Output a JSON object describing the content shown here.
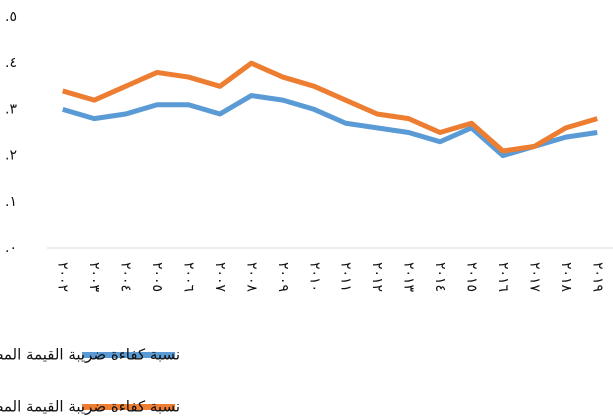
{
  "chart_data": {
    "type": "line",
    "categories": [
      "٢٠٠٢",
      "٢٠٠٣",
      "٢٠٠٤",
      "٢٠٠٥",
      "٢٠٠٦",
      "٢٠٠٧",
      "٢٠٠٨",
      "٢٠٠٩",
      "٢٠١٠",
      "٢٠١١",
      "٢٠١٢",
      "٢٠١٣",
      "٢٠١٤",
      "٢٠١٥",
      "٢٠١٦",
      "٢٠١٧",
      "٢٠١٨",
      "٢٠١٩"
    ],
    "series": [
      {
        "name": "نسبة كفاءة ضريبة القيمة المضافة",
        "color": "#5b9bd5",
        "values": [
          0.3,
          0.28,
          0.29,
          0.31,
          0.31,
          0.29,
          0.33,
          0.32,
          0.3,
          0.27,
          0.26,
          0.25,
          0.23,
          0.26,
          0.2,
          0.22,
          0.24,
          0.25
        ]
      },
      {
        "name": "نسبة كفاءة ضريبة القيمة المضافة على قاعدة الاستهلاك",
        "color": "#ed7d31",
        "values": [
          0.34,
          0.32,
          0.35,
          0.38,
          0.37,
          0.35,
          0.4,
          0.37,
          0.35,
          0.32,
          0.29,
          0.28,
          0.25,
          0.27,
          0.21,
          0.22,
          0.26,
          0.28
        ]
      }
    ],
    "ylim": [
      0,
      0.5
    ],
    "yticks": [
      {
        "value": 0,
        "label": ".٠"
      },
      {
        "value": 0.1,
        "label": ".١"
      },
      {
        "value": 0.2,
        "label": ".٢"
      },
      {
        "value": 0.3,
        "label": ".٣"
      },
      {
        "value": 0.4,
        "label": ".٤"
      },
      {
        "value": 0.5,
        "label": ".٥"
      }
    ]
  }
}
